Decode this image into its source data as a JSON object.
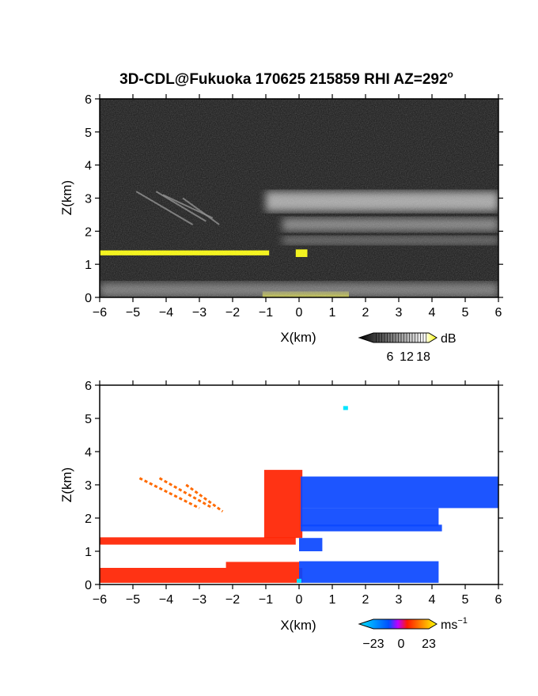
{
  "title": "3D-CDL@Fukuoka 170625 215859 RHI AZ=292",
  "title_superscript": "o",
  "chart_data": [
    {
      "type": "heatmap",
      "panel": "reflectivity",
      "xlabel": "X(km)",
      "ylabel": "Z(km)",
      "xlim": [
        -6,
        6
      ],
      "ylim": [
        0,
        6
      ],
      "xticks": [
        "−6",
        "−5",
        "−4",
        "−3",
        "−2",
        "−1",
        "0",
        "1",
        "2",
        "3",
        "4",
        "5",
        "6"
      ],
      "yticks": [
        "0",
        "1",
        "2",
        "3",
        "4",
        "5",
        "6"
      ],
      "background": "#151515",
      "colorbar": {
        "unit": "dB",
        "ticks": [
          "6",
          "12",
          "18"
        ],
        "range": [
          0,
          20
        ],
        "colors": [
          "#000000",
          "#ffffff",
          "#ffff00"
        ]
      },
      "features": [
        {
          "kind": "high-echo-layer",
          "x": [
            -6.0,
            -0.9
          ],
          "z": [
            1.27,
            1.42
          ],
          "level": "yellow"
        },
        {
          "kind": "high-echo-block",
          "x": [
            -0.1,
            0.25
          ],
          "z": [
            1.22,
            1.45
          ],
          "level": "yellow"
        },
        {
          "kind": "high-echo-ground",
          "x": [
            -1.1,
            1.5
          ],
          "z": [
            0.0,
            0.18
          ],
          "level": "yellow"
        },
        {
          "kind": "bright-layer",
          "x": [
            -1.0,
            6.0
          ],
          "z": [
            2.6,
            3.2
          ],
          "dB": 13
        },
        {
          "kind": "bright-layer",
          "x": [
            -0.5,
            6.0
          ],
          "z": [
            2.0,
            2.4
          ],
          "dB": 10
        },
        {
          "kind": "bright-layer",
          "x": [
            -0.5,
            6.0
          ],
          "z": [
            1.6,
            1.85
          ],
          "dB": 8
        },
        {
          "kind": "low-clutter-band",
          "x": [
            -6.0,
            6.0
          ],
          "z": [
            0.0,
            0.45
          ],
          "dB": 9
        },
        {
          "kind": "streaks",
          "segments": [
            [
              -4.9,
              3.2,
              -3.2,
              2.2
            ],
            [
              -4.3,
              3.2,
              -2.8,
              2.3
            ],
            [
              -4.1,
              3.1,
              -2.6,
              2.4
            ],
            [
              -3.5,
              3.0,
              -2.4,
              2.2
            ]
          ]
        }
      ]
    },
    {
      "type": "heatmap",
      "panel": "doppler velocity",
      "xlabel": "X(km)",
      "ylabel": "Z(km)",
      "xlim": [
        -6,
        6
      ],
      "ylim": [
        0,
        6
      ],
      "xticks": [
        "−6",
        "−5",
        "−4",
        "−3",
        "−2",
        "−1",
        "0",
        "1",
        "2",
        "3",
        "4",
        "5",
        "6"
      ],
      "yticks": [
        "0",
        "1",
        "2",
        "3",
        "4",
        "5",
        "6"
      ],
      "colorbar": {
        "unit": "ms",
        "unit_superscript": "−1",
        "ticks": [
          "−23",
          "0",
          "23"
        ],
        "range": [
          -23,
          23
        ],
        "colors": [
          "#00e5ff",
          "#0050ff",
          "#ff1a00",
          "#ffff00"
        ]
      },
      "regions": [
        {
          "x": [
            -6.0,
            -0.1
          ],
          "z": [
            1.2,
            1.42
          ],
          "velocity": 3
        },
        {
          "x": [
            -6.0,
            0.1
          ],
          "z": [
            0.05,
            0.5
          ],
          "velocity": 3
        },
        {
          "x": [
            -2.2,
            0.0
          ],
          "z": [
            0.5,
            0.68
          ],
          "velocity": 2
        },
        {
          "x": [
            -1.05,
            0.1
          ],
          "z": [
            1.4,
            3.45
          ],
          "velocity": 3
        },
        {
          "x": [
            0.05,
            6.0
          ],
          "z": [
            2.3,
            3.25
          ],
          "velocity": -8
        },
        {
          "x": [
            0.05,
            4.2
          ],
          "z": [
            1.75,
            2.3
          ],
          "velocity": -9
        },
        {
          "x": [
            0.05,
            4.3
          ],
          "z": [
            1.6,
            1.8
          ],
          "velocity": -9
        },
        {
          "x": [
            0.0,
            4.2
          ],
          "z": [
            0.05,
            0.7
          ],
          "velocity": -10
        },
        {
          "x": [
            0.0,
            0.7
          ],
          "z": [
            1.0,
            1.4
          ],
          "velocity": -8
        }
      ],
      "streaks": [
        [
          -4.8,
          3.2,
          -3.0,
          2.3
        ],
        [
          -4.2,
          3.2,
          -2.6,
          2.3
        ],
        [
          -3.4,
          3.0,
          -2.3,
          2.2
        ]
      ],
      "points": [
        {
          "x": 1.4,
          "z": 5.3,
          "velocity": -18
        },
        {
          "x": 0.0,
          "z": 0.1,
          "velocity": -20
        }
      ]
    }
  ]
}
